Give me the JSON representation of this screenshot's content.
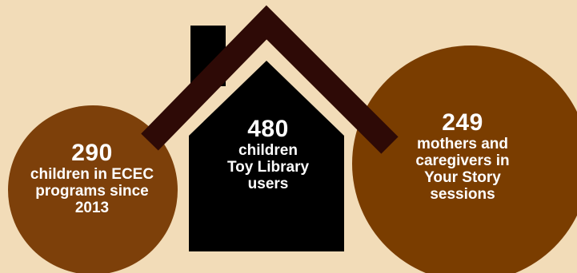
{
  "colors": {
    "background": "#f2dcb8",
    "house": "#000000",
    "roof": "#2e0a06",
    "left_circle": "#7d400a",
    "right_circle": "#7a3d00",
    "text": "#ffffff"
  },
  "stats": [
    {
      "number": "290",
      "line1": "children in ECEC",
      "line2": "programs since",
      "line3": "2013"
    },
    {
      "number": "480",
      "line1": "children",
      "line2": "Toy Library",
      "line3": "users"
    },
    {
      "number": "249",
      "line1": "mothers and",
      "line2": "caregivers in",
      "line3": "Your Story",
      "line4": "sessions"
    }
  ]
}
